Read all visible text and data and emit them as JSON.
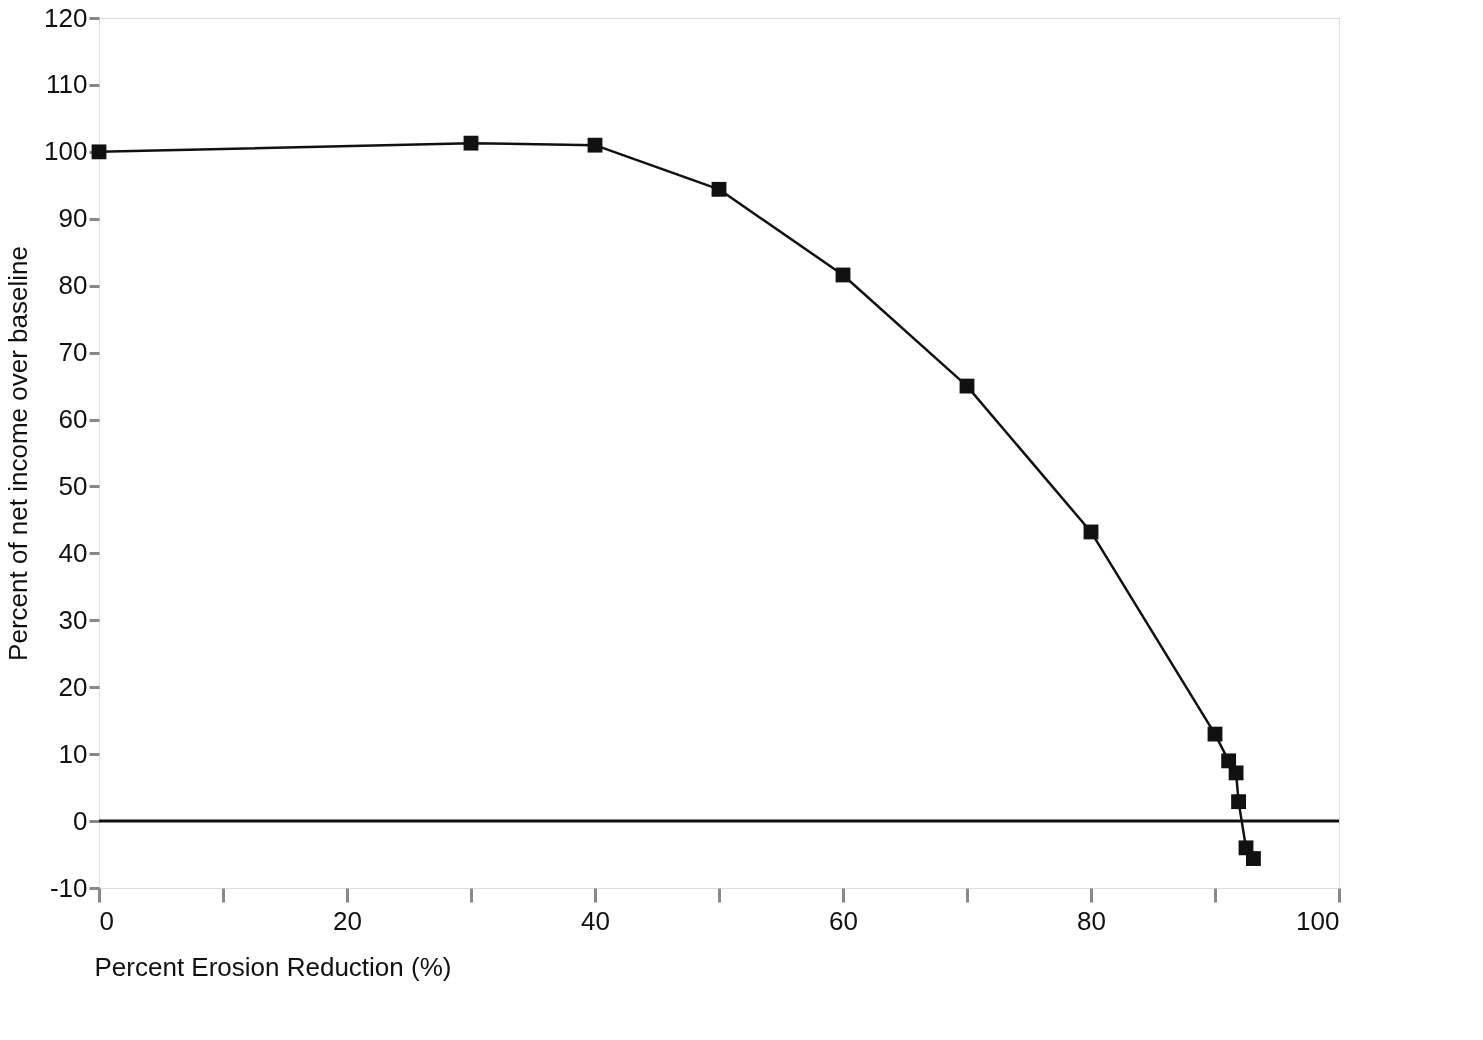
{
  "chart_data": {
    "type": "line",
    "xlabel": "Percent Erosion Reduction (%)",
    "ylabel": "Percent of net income over baseline",
    "x": [
      0,
      30,
      40,
      50,
      60,
      70,
      80,
      90,
      91.1,
      91.7,
      91.9,
      92.5,
      93.1
    ],
    "series": [
      {
        "color": "#111111",
        "values": [
          100,
          101.3,
          101,
          94.4,
          81.6,
          65,
          43.2,
          13,
          9,
          7.2,
          2.9,
          -4,
          -5.6
        ]
      }
    ],
    "marker": "square",
    "line_style": "solid",
    "grid": false,
    "xlim": [
      0,
      100
    ],
    "ylim": [
      -10,
      120
    ],
    "xticks": [
      0,
      {
        "value": 10,
        "label": null
      },
      20,
      {
        "value": 30,
        "label": null
      },
      40,
      {
        "value": 50,
        "label": null
      },
      60,
      {
        "value": 70,
        "label": null
      },
      80,
      {
        "value": 90,
        "label": null
      },
      100
    ],
    "yticks": [
      -10,
      0,
      10,
      20,
      30,
      40,
      50,
      60,
      70,
      80,
      90,
      100,
      110,
      120
    ],
    "ref_lines": [
      {
        "axis": "y",
        "value": 0,
        "color": "#111111",
        "line_style": "solid"
      }
    ]
  }
}
